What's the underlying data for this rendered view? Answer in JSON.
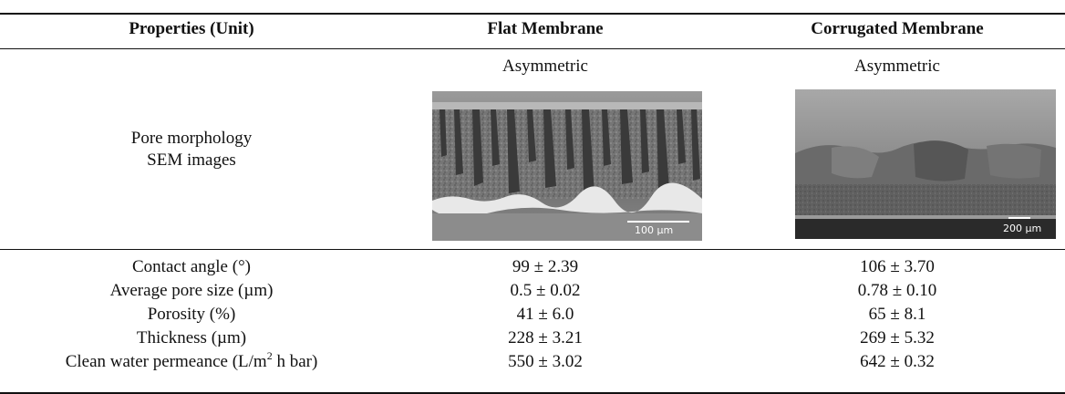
{
  "table": {
    "headers": [
      "Properties (Unit)",
      "Flat Membrane",
      "Corrugated Membrane"
    ],
    "morphology": {
      "label_line1": "Pore morphology",
      "label_line2": "SEM images",
      "flat_type": "Asymmetric",
      "corrugated_type": "Asymmetric",
      "flat_scale": "100 µm",
      "corrugated_scale": "200 µm"
    },
    "rows": [
      {
        "property": "Contact angle (°)",
        "flat": "99 ± 2.39",
        "corrugated": "106 ± 3.70"
      },
      {
        "property": "Average pore size (µm)",
        "flat": "0.5 ± 0.02",
        "corrugated": "0.78 ± 0.10"
      },
      {
        "property": "Porosity (%)",
        "flat": "41 ± 6.0",
        "corrugated": "65 ± 8.1"
      },
      {
        "property": "Thickness (µm)",
        "flat": "228 ± 3.21",
        "corrugated": "269 ± 5.32"
      },
      {
        "property_prefix": "Clean water permeance (L/m",
        "property_sup": "2",
        "property_suffix": " h bar)",
        "flat": "550 ± 3.02",
        "corrugated": "642 ± 0.32"
      }
    ]
  }
}
